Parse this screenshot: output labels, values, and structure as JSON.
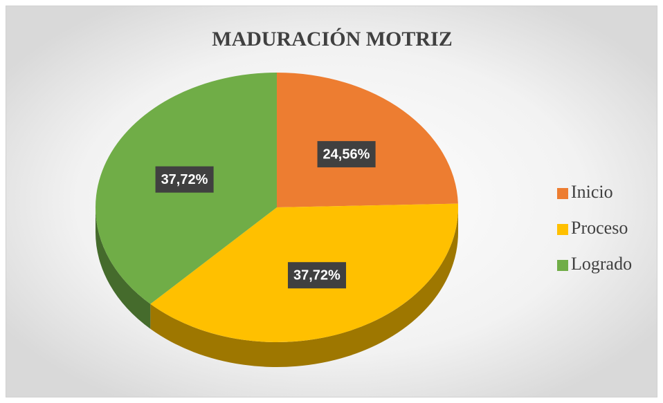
{
  "chart_data": {
    "type": "pie",
    "title": "MADURACIÓN MOTRIZ",
    "categories": [
      "Inicio",
      "Proceso",
      "Logrado"
    ],
    "values": [
      24.56,
      37.72,
      37.72
    ],
    "value_labels": [
      "24,56%",
      "37,72%",
      "37,72%"
    ],
    "colors": [
      "#ed7d31",
      "#ffc000",
      "#70ad47"
    ],
    "legend": "right"
  }
}
